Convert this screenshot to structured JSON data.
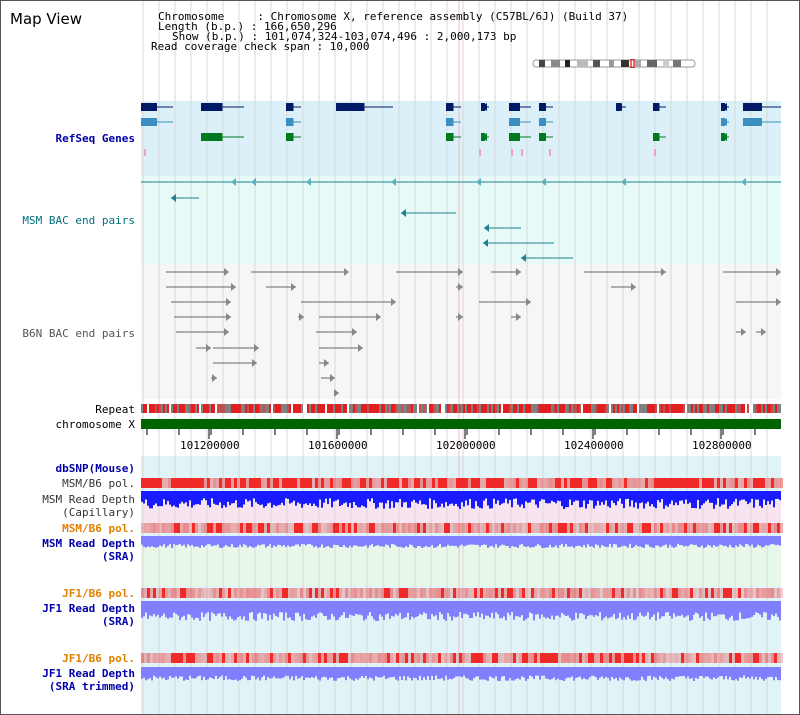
{
  "title": "Map View",
  "info": {
    "chromosome": "Chromosome     : Chromosome X, reference assembly (C57BL/6J) (Build 37)",
    "length": "Length (b.p.) : 166,650,296",
    "show": "Show (b.p.) : 101,074,324-103,074,496 : 2,000,173 bp",
    "coverage": "Read coverage check span : 10,000"
  },
  "tracks": {
    "refseq": "RefSeq Genes",
    "msm_bac": "MSM BAC end pairs",
    "b6n_bac": "B6N BAC end pairs",
    "repeat": "Repeat",
    "chromosome": "chromosome X",
    "dbsnp": "dbSNP(Mouse)",
    "msm_b6_pol_1": "MSM/B6 pol.",
    "msm_depth_cap_1": "MSM Read Depth",
    "msm_depth_cap_2": "(Capillary)",
    "msm_b6_pol_2": "MSM/B6 pol.",
    "msm_depth_sra_1": "MSM Read Depth",
    "msm_depth_sra_2": "(SRA)",
    "jf1_b6_pol_1": "JF1/B6 pol.",
    "jf1_depth_sra_1": "JF1 Read Depth",
    "jf1_depth_sra_2": "(SRA)",
    "jf1_b6_pol_2": "JF1/B6 pol.",
    "jf1_depth_tr_1": "JF1 Read Depth",
    "jf1_depth_tr_2": "(SRA trimmed)"
  },
  "axis": {
    "ticks": [
      "101200000",
      "101600000",
      "102000000",
      "102400000",
      "102800000"
    ]
  },
  "colors": {
    "refseq_bg": "#dcf0fa",
    "msm_bg": "#e6faf8",
    "b6n_bg": "#f6f6f6",
    "chromosome_bar": "#006400",
    "label_blue": "#0000aa",
    "label_teal": "#007080",
    "label_orange": "#e08000",
    "depth_dark": "#1a1aff",
    "depth_light": "#8080ff"
  }
}
